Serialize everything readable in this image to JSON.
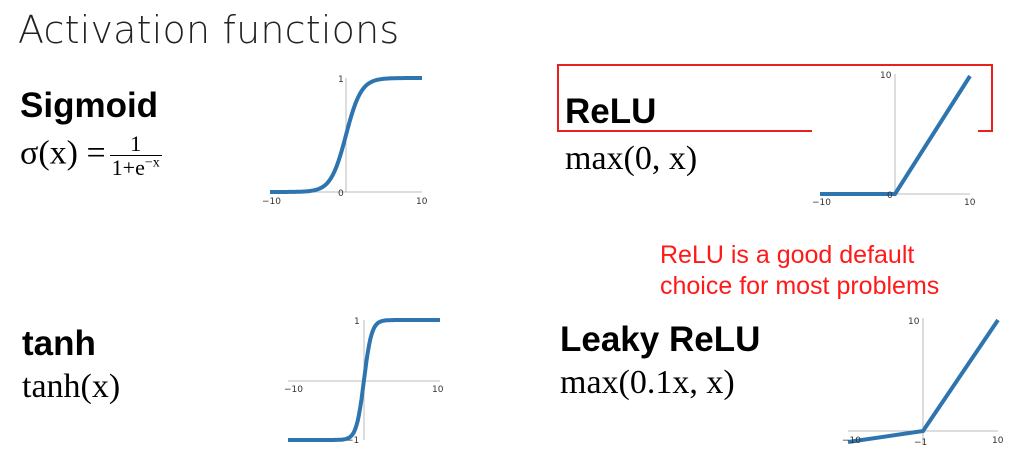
{
  "title": "Activation functions",
  "panels": {
    "sigmoid": {
      "name": "Sigmoid",
      "formula_lhs": "σ(x) =",
      "formula_num": "1",
      "formula_den_base": "1+e",
      "formula_den_exp": "−x",
      "plot": {
        "xmin": "−10",
        "xmax": "10",
        "ytop": "1",
        "yorigin": "0"
      }
    },
    "relu": {
      "name": "ReLU",
      "formula": "max(0, x)",
      "plot": {
        "xmin": "−10",
        "xmax": "10",
        "ytop": "10",
        "yorigin": "0"
      }
    },
    "tanh": {
      "name": "tanh",
      "formula": "tanh(x)",
      "plot": {
        "xmin": "−10",
        "xmax": "10",
        "ytop": "1",
        "ybottom": "−1"
      }
    },
    "leaky_relu": {
      "name": "Leaky ReLU",
      "formula": "max(0.1x, x)",
      "plot": {
        "xmin": "−10",
        "xmax": "10",
        "ytop": "10",
        "yneg": "−1"
      }
    }
  },
  "note": {
    "line1": "ReLU is a good default",
    "line2": "choice for most problems",
    "color": "#ff1a1a"
  },
  "curve_color": "#2e75b0"
}
